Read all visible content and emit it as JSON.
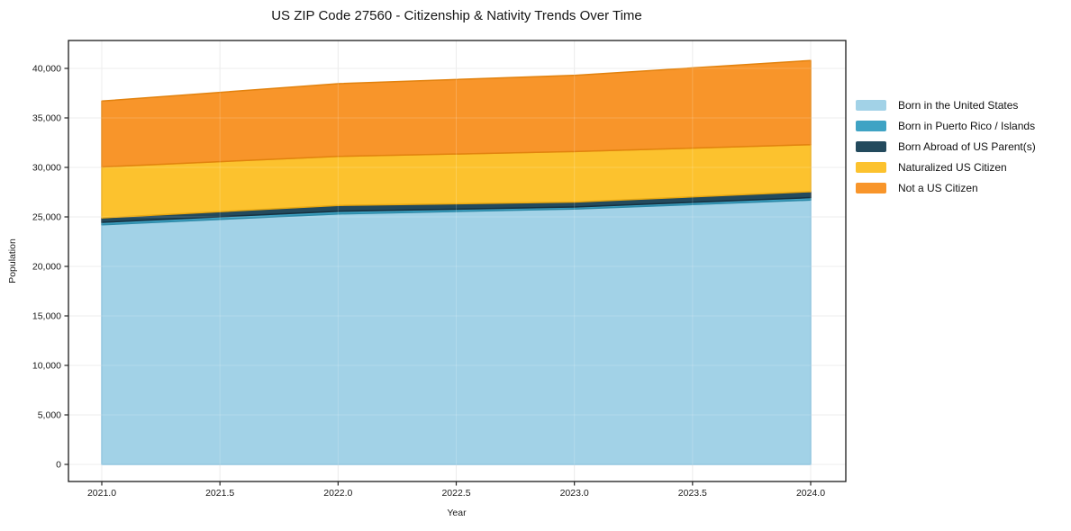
{
  "title": "US ZIP Code 27560 - Citizenship & Nativity Trends Over Time",
  "chart_data": {
    "type": "area",
    "stacked": true,
    "title": "US ZIP Code 27560 - Citizenship & Nativity Trends Over Time",
    "xlabel": "Year",
    "ylabel": "Population",
    "x": [
      2021,
      2022,
      2023,
      2024
    ],
    "x_tick_values": [
      2021.0,
      2021.5,
      2022.0,
      2022.5,
      2023.0,
      2023.5,
      2024.0
    ],
    "x_tick_labels": [
      "2021.0",
      "2021.5",
      "2022.0",
      "2022.5",
      "2023.0",
      "2023.5",
      "2024.0"
    ],
    "y_tick_values": [
      0,
      5000,
      10000,
      15000,
      20000,
      25000,
      30000,
      35000,
      40000
    ],
    "y_tick_labels": [
      "0",
      "5,000",
      "10,000",
      "15,000",
      "20,000",
      "25,000",
      "30,000",
      "35,000",
      "40,000"
    ],
    "ylim": [
      -1750,
      42650
    ],
    "xlim": [
      2020.86,
      2024.15
    ],
    "grid": true,
    "legend_position": "right-outside",
    "series": [
      {
        "name": "Born in the United States",
        "color": "#a2d2e7",
        "edge_color": "#86bfdb",
        "values": [
          24200,
          25300,
          25800,
          26700
        ]
      },
      {
        "name": "Born in Puerto Rico / Islands",
        "color": "#3fa3c4",
        "edge_color": "#2d8aa8",
        "values": [
          250,
          270,
          200,
          250
        ]
      },
      {
        "name": "Born Abroad of US Parent(s)",
        "color": "#234a5d",
        "edge_color": "#16303f",
        "values": [
          450,
          590,
          500,
          600
        ]
      },
      {
        "name": "Naturalized US Citizen",
        "color": "#fcc22e",
        "edge_color": "#e9a912",
        "values": [
          5150,
          4950,
          5100,
          4750
        ]
      },
      {
        "name": "Not a US Citizen",
        "color": "#f8952a",
        "edge_color": "#e2820e",
        "values": [
          6650,
          7350,
          7700,
          8500
        ]
      }
    ],
    "totals": [
      36700,
      38460,
      39300,
      40800
    ]
  }
}
